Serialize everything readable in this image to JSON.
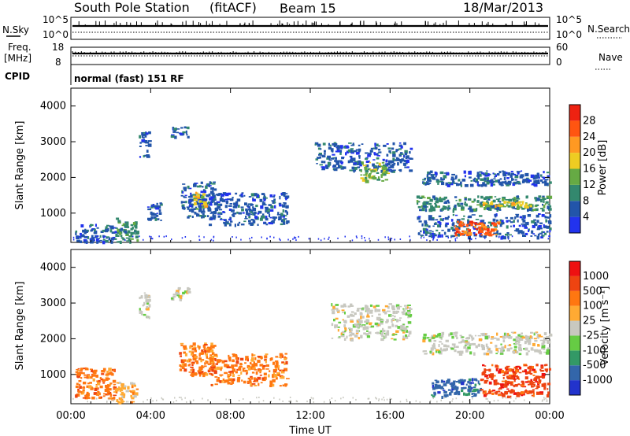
{
  "header": {
    "station": "South Pole Station",
    "mode": "(fitACF)",
    "beam": "Beam 15",
    "date": "18/Mar/2013"
  },
  "top_panels": {
    "nsky_label": "N.Sky",
    "nsearch_label": "N.Search",
    "nsky_ticks": [
      "10^5",
      "10^0"
    ],
    "nsearch_ticks": [
      "10^5",
      "10^0"
    ],
    "freq_label": "Freq.",
    "freq_unit": "[MHz]",
    "freq_ticks": [
      "18",
      "8"
    ],
    "nave_label": "Nave",
    "nave_ticks": [
      "60",
      "0"
    ],
    "cpid_label": "CPID",
    "cpid_value": "normal (fast) 151 RF"
  },
  "chart_data": [
    {
      "type": "heatmap",
      "title": "",
      "xlabel": "Time UT",
      "ylabel": "Slant Range [km]",
      "x_ticks": [
        "00:00",
        "04:00",
        "08:00",
        "12:00",
        "16:00",
        "20:00",
        "00:00"
      ],
      "y_ticks": [
        "1000",
        "2000",
        "3000",
        "4000"
      ],
      "xlim": [
        0,
        24
      ],
      "ylim": [
        180,
        4500
      ],
      "colorbar": {
        "label": "Power [dB]",
        "ticks": [
          "4",
          "8",
          "12",
          "16",
          "20",
          "24",
          "28"
        ],
        "colors": [
          "#2233ee",
          "#2255aa",
          "#33886e",
          "#66aa44",
          "#eecc22",
          "#ff9922",
          "#ff5511",
          "#ee2211"
        ]
      },
      "features": [
        {
          "x": [
            0.2,
            2.2
          ],
          "range": [
            200,
            700
          ],
          "level": 1
        },
        {
          "x": [
            2.2,
            3.3
          ],
          "range": [
            200,
            900
          ],
          "level": 2
        },
        {
          "x": [
            3.8,
            4.5
          ],
          "range": [
            800,
            1300
          ],
          "level": 1
        },
        {
          "x": [
            3.4,
            3.9
          ],
          "range": [
            2600,
            3300
          ],
          "level": 1
        },
        {
          "x": [
            5.0,
            5.9
          ],
          "range": [
            3150,
            3450
          ],
          "level": 1
        },
        {
          "x": [
            5.5,
            7.2
          ],
          "range": [
            900,
            1900
          ],
          "level": 1
        },
        {
          "x": [
            6.1,
            6.7
          ],
          "range": [
            1100,
            1600
          ],
          "level": 4
        },
        {
          "x": [
            6.9,
            10.8
          ],
          "range": [
            700,
            1600
          ],
          "level": 1
        },
        {
          "x": [
            12.2,
            17.0
          ],
          "range": [
            2200,
            3000
          ],
          "level": 1
        },
        {
          "x": [
            14.5,
            15.8
          ],
          "range": [
            1900,
            2450
          ],
          "level": 3
        },
        {
          "x": [
            17.6,
            24.0
          ],
          "range": [
            1800,
            2200
          ],
          "level": 1
        },
        {
          "x": [
            17.3,
            24.0
          ],
          "range": [
            1100,
            1500
          ],
          "level": 2
        },
        {
          "x": [
            17.3,
            24.0
          ],
          "range": [
            350,
            1000
          ],
          "level": 1
        },
        {
          "x": [
            19.2,
            21.4
          ],
          "range": [
            400,
            800
          ],
          "level": 6
        },
        {
          "x": [
            20.5,
            23.0
          ],
          "range": [
            1200,
            1350
          ],
          "level": 4
        }
      ]
    },
    {
      "type": "heatmap",
      "title": "",
      "xlabel": "Time UT",
      "ylabel": "Slant Range [km]",
      "x_ticks": [
        "00:00",
        "04:00",
        "08:00",
        "12:00",
        "16:00",
        "20:00",
        "00:00"
      ],
      "y_ticks": [
        "1000",
        "2000",
        "3000",
        "4000"
      ],
      "xlim": [
        0,
        24
      ],
      "ylim": [
        180,
        4500
      ],
      "colorbar": {
        "label": "Velocity [m s⁻¹]",
        "ticks": [
          "1000",
          "500",
          "100",
          "25",
          "-25",
          "-100",
          "-500",
          "-1000"
        ],
        "colors": [
          "#2233cc",
          "#3366aa",
          "#339966",
          "#66cc44",
          "#c8c8c0",
          "#ffaa33",
          "#ff7711",
          "#ee4411",
          "#ee1111"
        ]
      },
      "features": [
        {
          "x": [
            0.2,
            2.2
          ],
          "range": [
            300,
            1200
          ],
          "level": 6
        },
        {
          "x": [
            2.2,
            3.3
          ],
          "range": [
            200,
            800
          ],
          "level": 5
        },
        {
          "x": [
            3.4,
            3.9
          ],
          "range": [
            2600,
            3400
          ],
          "level": 4
        },
        {
          "x": [
            5.0,
            5.9
          ],
          "range": [
            3100,
            3450
          ],
          "level": 4
        },
        {
          "x": [
            5.4,
            7.2
          ],
          "range": [
            1000,
            1900
          ],
          "level": 6
        },
        {
          "x": [
            6.9,
            10.8
          ],
          "range": [
            700,
            1600
          ],
          "level": 6
        },
        {
          "x": [
            13.0,
            17.0
          ],
          "range": [
            2000,
            3000
          ],
          "level": 4
        },
        {
          "x": [
            17.6,
            24.0
          ],
          "range": [
            1600,
            2200
          ],
          "level": 4
        },
        {
          "x": [
            18.0,
            20.5
          ],
          "range": [
            400,
            900
          ],
          "level": 1
        },
        {
          "x": [
            20.5,
            24.0
          ],
          "range": [
            400,
            1300
          ],
          "level": 7
        }
      ]
    }
  ]
}
